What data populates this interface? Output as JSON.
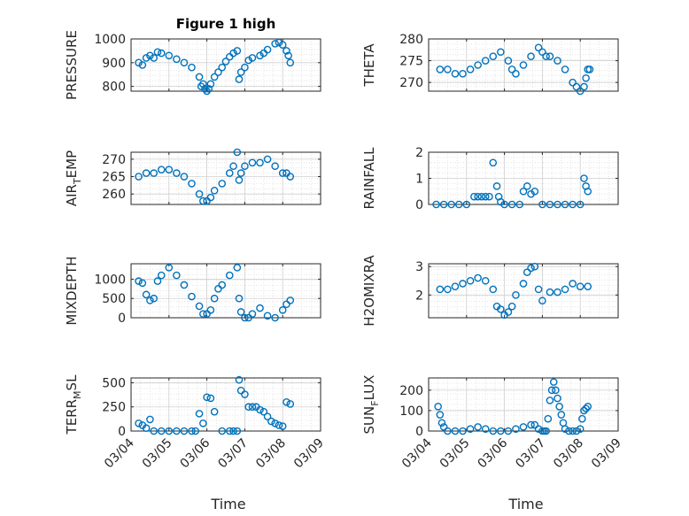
{
  "chart_data": [
    {
      "type": "scatter",
      "title": "Figure 1 high",
      "ylabel": "PRESSURE",
      "ylim": [
        780,
        1000
      ],
      "yticks": [
        800,
        900,
        1000
      ],
      "xticks": [
        "03/04",
        "03/05",
        "03/06",
        "03/07",
        "03/08",
        "03/09"
      ],
      "grid": true,
      "series": [
        {
          "x": [
            0.2,
            0.3,
            0.4,
            0.5,
            0.6,
            0.7,
            0.8,
            1.0,
            1.2,
            1.4,
            1.6,
            1.8,
            1.85,
            1.9,
            1.95,
            2.0,
            2.05,
            2.1,
            2.2,
            2.3,
            2.4,
            2.5,
            2.6,
            2.7,
            2.8,
            2.85,
            2.9,
            3.0,
            3.1,
            3.2,
            3.4,
            3.5,
            3.6,
            3.8,
            3.9,
            4.0,
            4.1,
            4.15,
            4.2
          ],
          "y": [
            900,
            890,
            920,
            930,
            920,
            945,
            940,
            930,
            915,
            900,
            880,
            840,
            800,
            810,
            790,
            780,
            790,
            810,
            840,
            860,
            880,
            905,
            925,
            940,
            950,
            830,
            860,
            880,
            910,
            920,
            930,
            940,
            955,
            980,
            985,
            975,
            950,
            930,
            900
          ]
        }
      ]
    },
    {
      "type": "scatter",
      "title": "",
      "ylabel": "THETA",
      "ylim": [
        268,
        280
      ],
      "yticks": [
        270,
        275,
        280
      ],
      "xticks": [
        "03/04",
        "03/05",
        "03/06",
        "03/07",
        "03/08",
        "03/09"
      ],
      "grid": true,
      "series": [
        {
          "x": [
            0.3,
            0.5,
            0.7,
            0.9,
            1.1,
            1.3,
            1.5,
            1.7,
            1.9,
            2.1,
            2.2,
            2.3,
            2.5,
            2.7,
            2.9,
            3.0,
            3.1,
            3.2,
            3.4,
            3.6,
            3.8,
            3.9,
            4.0,
            4.1,
            4.15,
            4.2,
            4.25
          ],
          "y": [
            273,
            273,
            272,
            272,
            273,
            274,
            275,
            276,
            277,
            275,
            273,
            272,
            274,
            276,
            278,
            277,
            276,
            276,
            275,
            273,
            270,
            269,
            268,
            269,
            271,
            273,
            273
          ]
        }
      ]
    },
    {
      "type": "scatter",
      "title": "",
      "ylabel": "AIR",
      "ylabel_sub": "T",
      "ylabel_suffix": "EMP",
      "ylim": [
        257,
        272
      ],
      "yticks": [
        260,
        265,
        270
      ],
      "xticks": [
        "03/04",
        "03/05",
        "03/06",
        "03/07",
        "03/08",
        "03/09"
      ],
      "grid": true,
      "series": [
        {
          "x": [
            0.2,
            0.4,
            0.6,
            0.8,
            1.0,
            1.2,
            1.4,
            1.6,
            1.8,
            1.9,
            2.0,
            2.1,
            2.2,
            2.4,
            2.6,
            2.7,
            2.8,
            2.85,
            2.9,
            3.0,
            3.2,
            3.4,
            3.6,
            3.8,
            4.0,
            4.1,
            4.2
          ],
          "y": [
            265,
            266,
            266,
            267,
            267,
            266,
            265,
            263,
            260,
            258,
            258,
            259,
            261,
            263,
            266,
            268,
            272,
            264,
            266,
            268,
            269,
            269,
            270,
            268,
            266,
            266,
            265
          ]
        }
      ]
    },
    {
      "type": "scatter",
      "title": "",
      "ylabel": "RAINFALL",
      "ylim": [
        0,
        2
      ],
      "yticks": [
        0,
        1,
        2
      ],
      "xticks": [
        "03/04",
        "03/05",
        "03/06",
        "03/07",
        "03/08",
        "03/09"
      ],
      "grid": true,
      "series": [
        {
          "x": [
            0.2,
            0.4,
            0.6,
            0.8,
            1.0,
            1.2,
            1.3,
            1.4,
            1.5,
            1.6,
            1.7,
            1.8,
            1.85,
            1.9,
            2.0,
            2.2,
            2.4,
            2.5,
            2.6,
            2.7,
            2.8,
            3.0,
            3.2,
            3.4,
            3.6,
            3.8,
            4.0,
            4.1,
            4.15,
            4.2
          ],
          "y": [
            0,
            0,
            0,
            0,
            0,
            0.3,
            0.3,
            0.3,
            0.3,
            0.3,
            1.6,
            0.7,
            0.3,
            0.1,
            0,
            0,
            0,
            0.5,
            0.7,
            0.4,
            0.5,
            0,
            0,
            0,
            0,
            0,
            0,
            1.0,
            0.7,
            0.5
          ]
        }
      ]
    },
    {
      "type": "scatter",
      "title": "",
      "ylabel": "MIXDEPTH",
      "ylim": [
        0,
        1400
      ],
      "yticks": [
        0,
        500,
        1000
      ],
      "xticks": [
        "03/04",
        "03/05",
        "03/06",
        "03/07",
        "03/08",
        "03/09"
      ],
      "grid": true,
      "series": [
        {
          "x": [
            0.2,
            0.3,
            0.4,
            0.5,
            0.6,
            0.7,
            0.8,
            1.0,
            1.2,
            1.4,
            1.6,
            1.8,
            1.9,
            2.0,
            2.1,
            2.2,
            2.3,
            2.4,
            2.6,
            2.8,
            2.85,
            2.9,
            3.0,
            3.1,
            3.2,
            3.4,
            3.6,
            3.8,
            4.0,
            4.1,
            4.2
          ],
          "y": [
            950,
            900,
            600,
            450,
            500,
            950,
            1100,
            1300,
            1100,
            850,
            550,
            300,
            100,
            100,
            200,
            500,
            750,
            850,
            1100,
            1300,
            500,
            150,
            0,
            0,
            100,
            250,
            50,
            0,
            200,
            350,
            450
          ]
        }
      ]
    },
    {
      "type": "scatter",
      "title": "",
      "ylabel": "H2OMIXRA",
      "ylim": [
        1.2,
        3.1
      ],
      "yticks": [
        2,
        3
      ],
      "xticks": [
        "03/04",
        "03/05",
        "03/06",
        "03/07",
        "03/08",
        "03/09"
      ],
      "grid": true,
      "series": [
        {
          "x": [
            0.3,
            0.5,
            0.7,
            0.9,
            1.1,
            1.3,
            1.5,
            1.7,
            1.8,
            1.9,
            2.0,
            2.1,
            2.2,
            2.3,
            2.5,
            2.6,
            2.7,
            2.8,
            2.9,
            3.0,
            3.2,
            3.4,
            3.6,
            3.8,
            4.0,
            4.2
          ],
          "y": [
            2.2,
            2.2,
            2.3,
            2.4,
            2.5,
            2.6,
            2.5,
            2.2,
            1.6,
            1.5,
            1.3,
            1.4,
            1.6,
            2.0,
            2.4,
            2.8,
            2.95,
            3.0,
            2.2,
            1.8,
            2.1,
            2.1,
            2.2,
            2.4,
            2.3,
            2.3
          ]
        }
      ]
    },
    {
      "type": "scatter",
      "title": "",
      "ylabel": "TERR",
      "ylabel_sub": "M",
      "ylabel_suffix": "SL",
      "ylim": [
        0,
        550
      ],
      "yticks": [
        0,
        250,
        500
      ],
      "xticks": [
        "03/04",
        "03/05",
        "03/06",
        "03/07",
        "03/08",
        "03/09"
      ],
      "grid": true,
      "series": [
        {
          "x": [
            0.2,
            0.3,
            0.4,
            0.5,
            0.6,
            0.8,
            1.0,
            1.2,
            1.4,
            1.6,
            1.7,
            1.8,
            1.9,
            2.0,
            2.1,
            2.2,
            2.4,
            2.6,
            2.7,
            2.8,
            2.85,
            2.9,
            3.0,
            3.1,
            3.2,
            3.3,
            3.4,
            3.5,
            3.6,
            3.7,
            3.8,
            3.9,
            4.0,
            4.1,
            4.2
          ],
          "y": [
            80,
            60,
            30,
            120,
            0,
            0,
            0,
            0,
            0,
            0,
            0,
            180,
            80,
            350,
            340,
            200,
            0,
            0,
            0,
            0,
            530,
            420,
            380,
            250,
            250,
            250,
            220,
            200,
            150,
            100,
            80,
            60,
            50,
            300,
            280
          ]
        }
      ]
    },
    {
      "type": "scatter",
      "title": "",
      "ylabel": "SUN",
      "ylabel_sub": "F",
      "ylabel_suffix": "LUX",
      "ylim": [
        0,
        260
      ],
      "yticks": [
        0,
        100,
        200
      ],
      "xticks": [
        "03/04",
        "03/05",
        "03/06",
        "03/07",
        "03/08",
        "03/09"
      ],
      "grid": true,
      "series": [
        {
          "x": [
            0.25,
            0.3,
            0.35,
            0.4,
            0.5,
            0.7,
            0.9,
            1.1,
            1.3,
            1.5,
            1.7,
            1.9,
            2.1,
            2.3,
            2.5,
            2.7,
            2.8,
            2.9,
            3.0,
            3.05,
            3.1,
            3.15,
            3.2,
            3.25,
            3.3,
            3.35,
            3.4,
            3.45,
            3.5,
            3.55,
            3.6,
            3.7,
            3.8,
            3.9,
            4.0,
            4.05,
            4.1,
            4.15,
            4.2
          ],
          "y": [
            120,
            80,
            40,
            20,
            0,
            0,
            0,
            10,
            20,
            10,
            0,
            0,
            0,
            10,
            20,
            30,
            30,
            10,
            0,
            0,
            0,
            60,
            150,
            200,
            240,
            200,
            160,
            120,
            80,
            40,
            10,
            0,
            0,
            0,
            10,
            60,
            100,
            110,
            120
          ]
        }
      ]
    }
  ],
  "xlabel_left": "Time",
  "xlabel_right": "Time",
  "colors": {
    "marker": "#0072bd",
    "axis": "#262626",
    "grid": "#dfdfdf"
  }
}
